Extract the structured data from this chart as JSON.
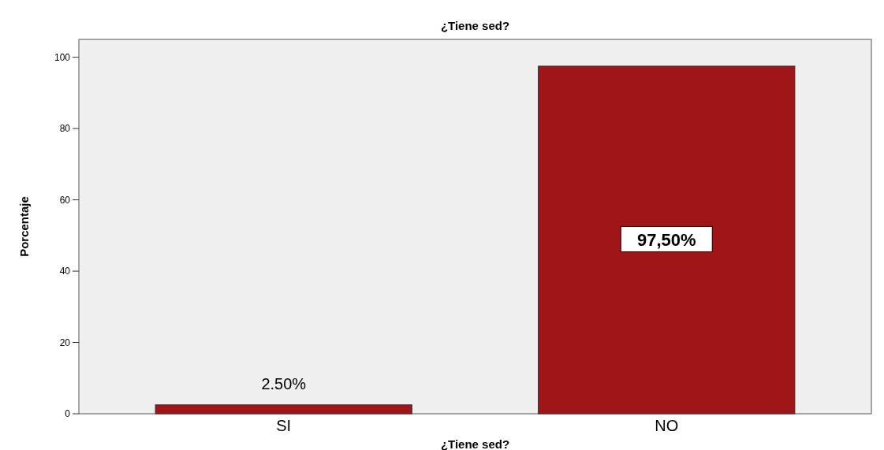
{
  "chart_data": {
    "type": "bar",
    "title": "¿Tiene sed?",
    "xlabel": "¿Tiene sed?",
    "ylabel": "Porcentaje",
    "categories": [
      "SI",
      "NO"
    ],
    "values": [
      2.5,
      97.5
    ],
    "value_labels": [
      "2.50%",
      "97,50%"
    ],
    "color": "#a01518",
    "ylim": [
      0,
      105
    ],
    "yticks": [
      0,
      20,
      40,
      60,
      80,
      100
    ],
    "grid": false
  }
}
